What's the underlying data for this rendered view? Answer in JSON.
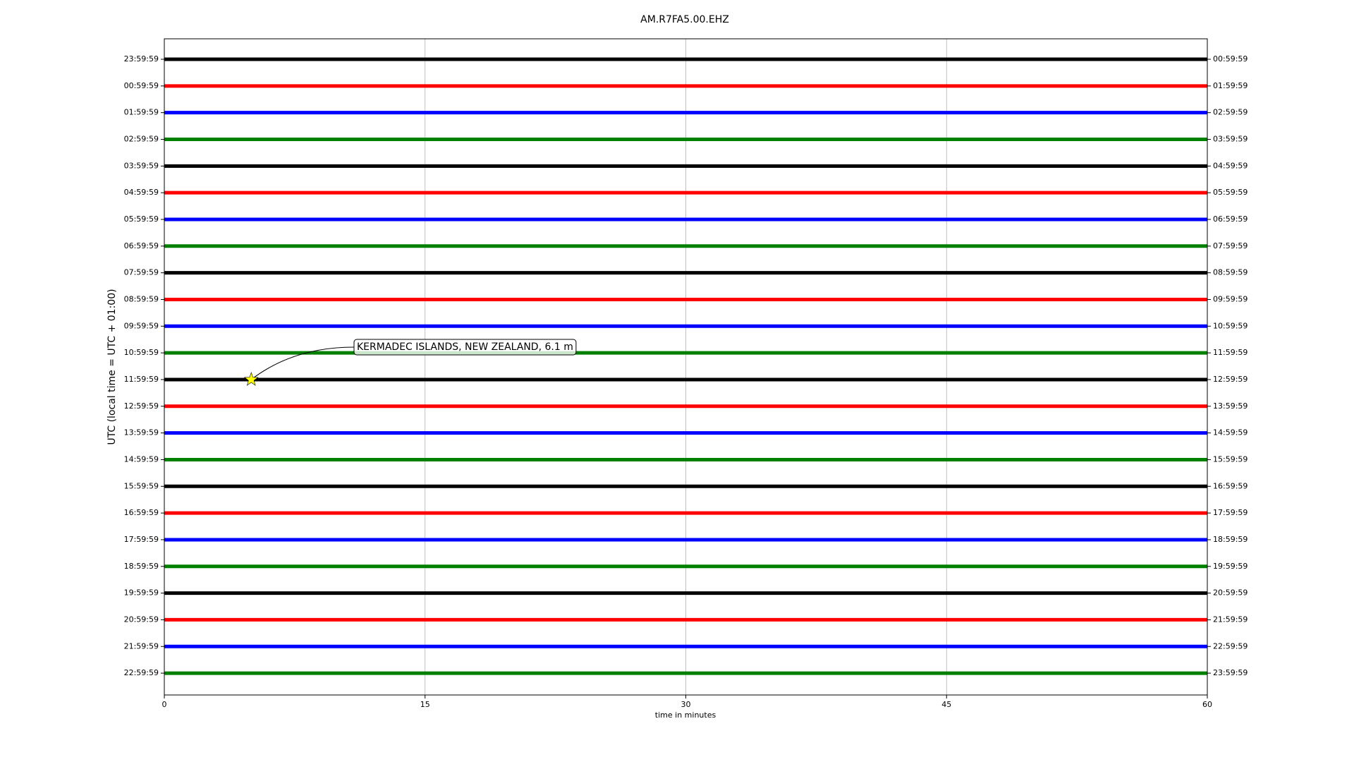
{
  "chart_data": {
    "type": "helicorder",
    "title": "AM.R7FA5.00.EHZ",
    "xlabel": "time in minutes",
    "ylabel": "UTC (local time = UTC + 01:00)",
    "xlim": [
      0,
      60
    ],
    "xticks": [
      0,
      15,
      30,
      45,
      60
    ],
    "grid": true,
    "colors": [
      "#000000",
      "#ff0000",
      "#0000ff",
      "#008000"
    ],
    "categories": [
      "23:59:59",
      "00:59:59",
      "01:59:59",
      "02:59:59",
      "03:59:59",
      "04:59:59",
      "05:59:59",
      "06:59:59",
      "07:59:59",
      "08:59:59",
      "09:59:59",
      "10:59:59",
      "11:59:59",
      "12:59:59",
      "13:59:59",
      "14:59:59",
      "15:59:59",
      "16:59:59",
      "17:59:59",
      "18:59:59",
      "19:59:59",
      "20:59:59",
      "21:59:59",
      "22:59:59"
    ],
    "right_categories": [
      "00:59:59",
      "01:59:59",
      "02:59:59",
      "03:59:59",
      "04:59:59",
      "05:59:59",
      "06:59:59",
      "07:59:59",
      "08:59:59",
      "09:59:59",
      "10:59:59",
      "11:59:59",
      "12:59:59",
      "13:59:59",
      "14:59:59",
      "15:59:59",
      "16:59:59",
      "17:59:59",
      "18:59:59",
      "19:59:59",
      "20:59:59",
      "21:59:59",
      "22:59:59",
      "23:59:59"
    ],
    "event": {
      "row": 12,
      "x": 5,
      "label": "KERMADEC ISLANDS, NEW ZEALAND, 6.1 m"
    }
  }
}
